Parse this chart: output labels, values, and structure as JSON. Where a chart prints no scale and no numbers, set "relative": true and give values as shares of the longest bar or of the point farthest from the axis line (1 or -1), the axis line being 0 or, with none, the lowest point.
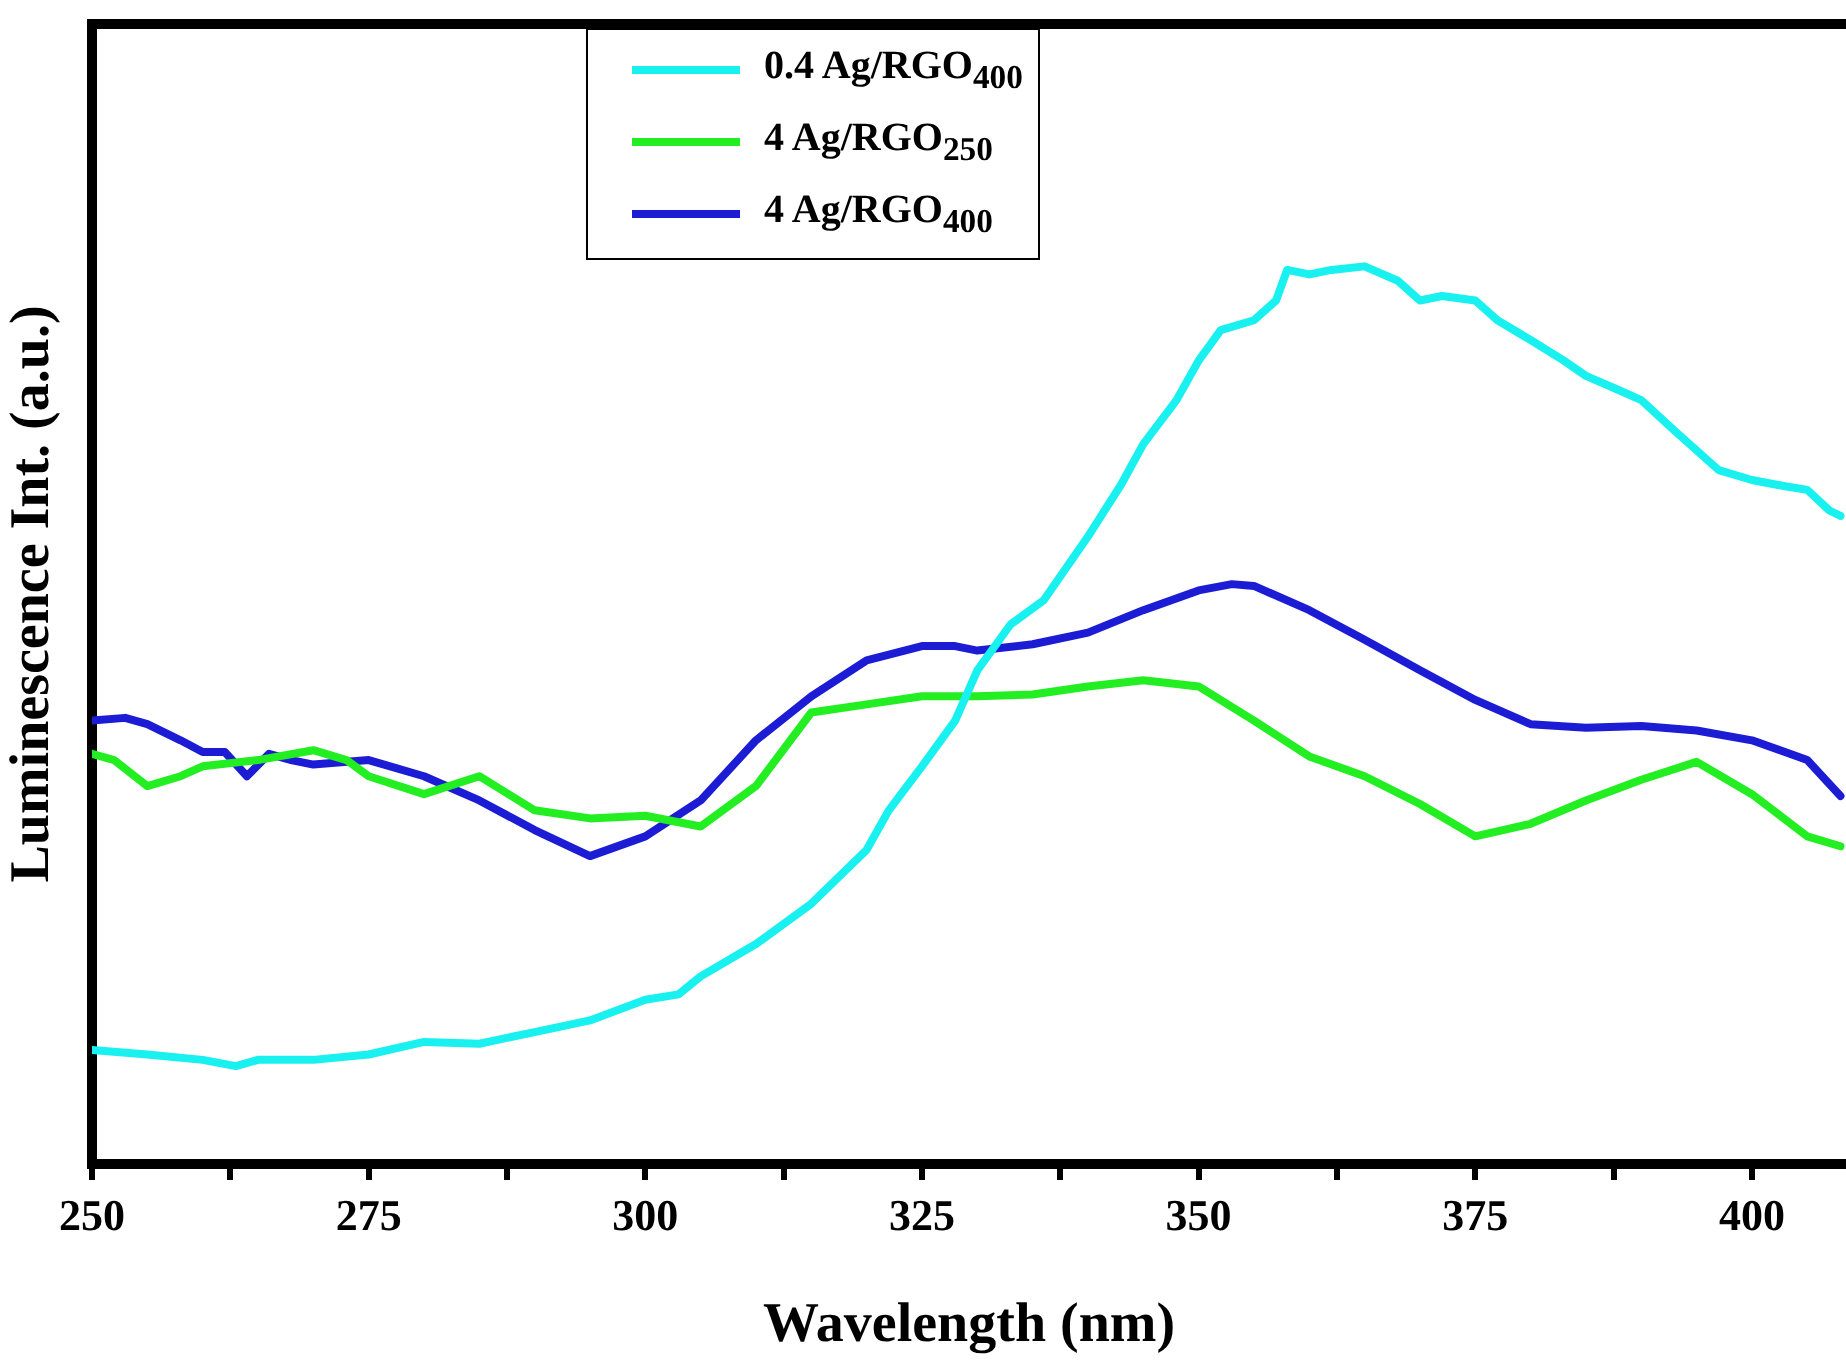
{
  "chart_data": {
    "type": "line",
    "xlabel": "Wavelength (nm)",
    "ylabel": "Luminescence Int. (a.u.)",
    "relative": true,
    "legend": "top left",
    "xlim": [
      250,
      408.5
    ],
    "xticks": [
      250,
      {
        "value": 262.5,
        "label": null
      },
      275,
      {
        "value": 287.5,
        "label": null
      },
      300,
      {
        "value": 312.5,
        "label": null
      },
      325,
      {
        "value": 337.5,
        "label": null
      },
      350,
      {
        "value": 362.5,
        "label": null
      },
      375,
      {
        "value": 387.5,
        "label": null
      },
      400
    ],
    "series": [
      {
        "name": "0.4 Ag/RGO$_{400}$",
        "color": "#19f0f0",
        "x": [
          250,
          255,
          260,
          263,
          265,
          270,
          275,
          280,
          285,
          290,
          295,
          300,
          303,
          305,
          310,
          315,
          320,
          322,
          325,
          328,
          330,
          333,
          336,
          340,
          343,
          345,
          348,
          350,
          352,
          355,
          357,
          358,
          360,
          362,
          365,
          368,
          370,
          372,
          375,
          377,
          380,
          383,
          385,
          388,
          390,
          393,
          395,
          397,
          400,
          403,
          405,
          407,
          408
        ],
        "values": [
          0.127,
          0.122,
          0.116,
          0.109,
          0.116,
          0.116,
          0.122,
          0.136,
          0.134,
          0.147,
          0.16,
          0.183,
          0.189,
          0.209,
          0.245,
          0.29,
          0.35,
          0.394,
          0.443,
          0.494,
          0.55,
          0.601,
          0.628,
          0.699,
          0.757,
          0.802,
          0.851,
          0.895,
          0.929,
          0.94,
          0.962,
          0.996,
          0.991,
          0.996,
          1,
          0.984,
          0.962,
          0.967,
          0.962,
          0.94,
          0.918,
          0.895,
          0.878,
          0.862,
          0.851,
          0.817,
          0.795,
          0.773,
          0.762,
          0.755,
          0.751,
          0.728,
          0.722
        ]
      },
      {
        "name": "4 Ag/RGO$_{250}$",
        "color": "#22ee22",
        "x": [
          250,
          252,
          255,
          258,
          260,
          265,
          270,
          273,
          275,
          280,
          285,
          290,
          295,
          300,
          305,
          310,
          315,
          320,
          325,
          330,
          335,
          340,
          345,
          350,
          355,
          360,
          365,
          370,
          375,
          380,
          385,
          390,
          395,
          400,
          405,
          408
        ],
        "values": [
          0.457,
          0.45,
          0.421,
          0.432,
          0.443,
          0.45,
          0.461,
          0.45,
          0.432,
          0.412,
          0.432,
          0.394,
          0.385,
          0.388,
          0.376,
          0.421,
          0.503,
          0.512,
          0.521,
          0.521,
          0.523,
          0.532,
          0.539,
          0.532,
          0.494,
          0.454,
          0.432,
          0.401,
          0.365,
          0.379,
          0.405,
          0.428,
          0.448,
          0.412,
          0.365,
          0.354
        ]
      },
      {
        "name": "4 Ag/RGO$_{400}$",
        "color": "#1c1cd4",
        "x": [
          250,
          253,
          255,
          258,
          260,
          262,
          264,
          266,
          268,
          270,
          275,
          280,
          285,
          290,
          295,
          300,
          305,
          310,
          315,
          320,
          325,
          328,
          330,
          335,
          340,
          345,
          350,
          353,
          355,
          360,
          365,
          370,
          375,
          380,
          385,
          390,
          395,
          400,
          405,
          408
        ],
        "values": [
          0.494,
          0.497,
          0.49,
          0.472,
          0.459,
          0.459,
          0.432,
          0.457,
          0.45,
          0.445,
          0.45,
          0.432,
          0.405,
          0.372,
          0.343,
          0.365,
          0.405,
          0.472,
          0.521,
          0.561,
          0.577,
          0.577,
          0.572,
          0.579,
          0.592,
          0.617,
          0.639,
          0.646,
          0.644,
          0.617,
          0.584,
          0.55,
          0.517,
          0.49,
          0.486,
          0.488,
          0.483,
          0.472,
          0.45,
          0.41
        ]
      }
    ]
  }
}
